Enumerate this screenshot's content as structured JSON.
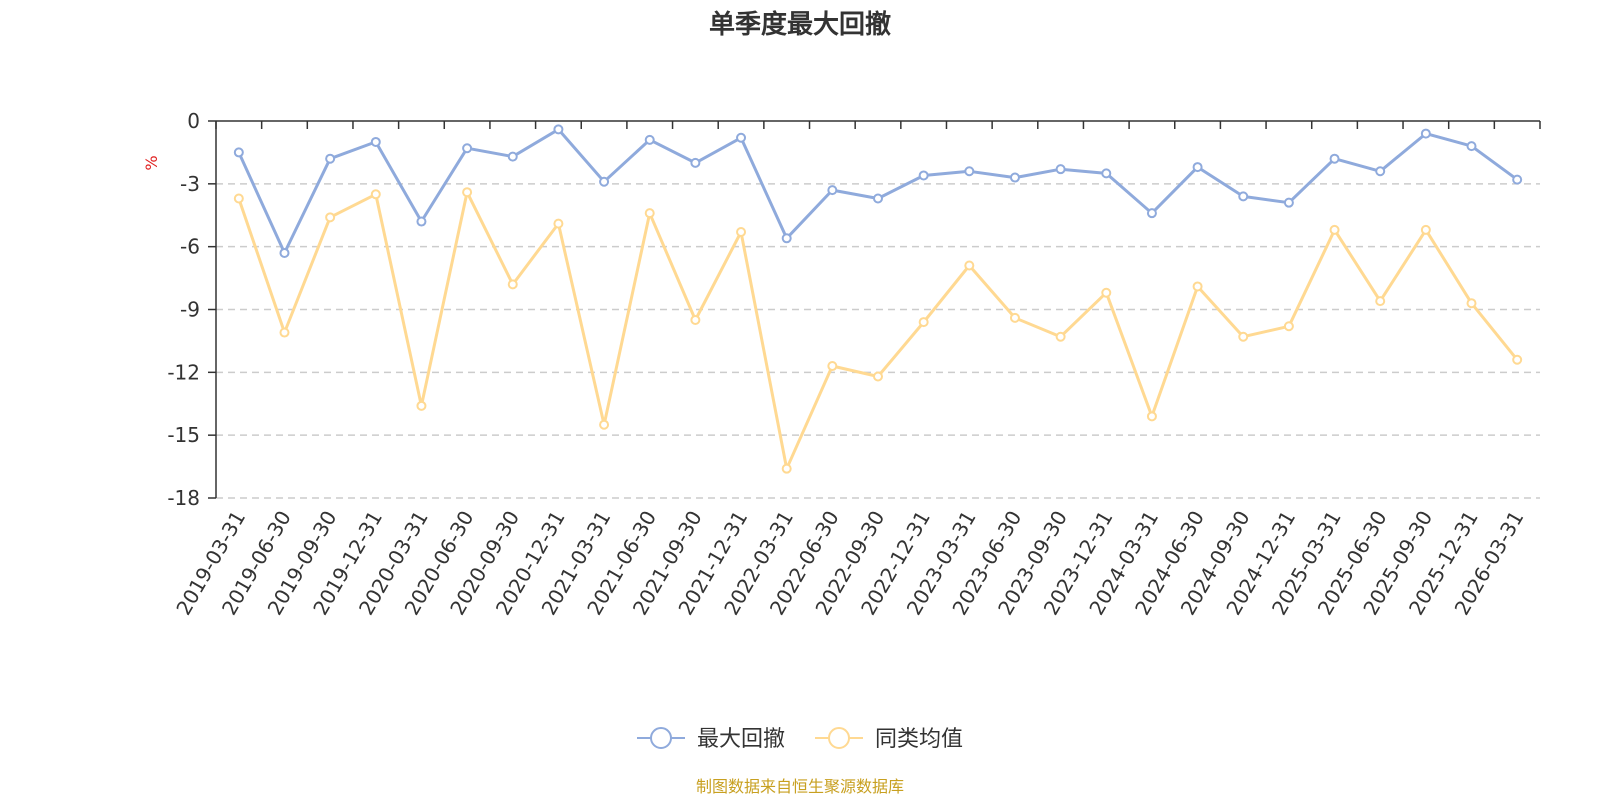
{
  "chart_data": {
    "type": "line",
    "title": "单季度最大回撤",
    "ylabel": "%",
    "ylim": [
      -18,
      0
    ],
    "yticks": [
      0,
      -3,
      -6,
      -9,
      -12,
      -15,
      -18
    ],
    "grid": true,
    "legend_position": "bottom-center",
    "categories": [
      "2019-03-31",
      "2019-06-30",
      "2019-09-30",
      "2019-12-31",
      "2020-03-31",
      "2020-06-30",
      "2020-09-30",
      "2020-12-31",
      "2021-03-31",
      "2021-06-30",
      "2021-09-30",
      "2021-12-31",
      "2022-03-31",
      "2022-06-30",
      "2022-09-30",
      "2022-12-31",
      "2023-03-31",
      "2023-06-30",
      "2023-09-30",
      "2023-12-31",
      "2024-03-31",
      "2024-06-30",
      "2024-09-30",
      "2024-12-31",
      "2025-03-31",
      "2025-06-30",
      "2025-09-30",
      "2025-12-31",
      "2026-03-31"
    ],
    "series": [
      {
        "name": "最大回撤",
        "color": "#8faadc",
        "values": [
          -1.5,
          -6.3,
          -1.8,
          -1.0,
          -4.8,
          -1.3,
          -1.7,
          -0.4,
          -2.9,
          -0.9,
          -2.0,
          -0.8,
          -5.6,
          -3.3,
          -3.7,
          -2.6,
          -2.4,
          -2.7,
          -2.3,
          -2.5,
          -4.4,
          -2.2,
          -3.6,
          -3.9,
          -1.8,
          -2.4,
          -0.6,
          -1.2,
          -2.8
        ]
      },
      {
        "name": "同类均值",
        "color": "#ffd992",
        "values": [
          -3.7,
          -10.1,
          -4.6,
          -3.5,
          -13.6,
          -3.4,
          -7.8,
          -4.9,
          -14.5,
          -4.4,
          -9.5,
          -5.3,
          -16.6,
          -11.7,
          -12.2,
          -9.6,
          -6.9,
          -9.4,
          -10.3,
          -8.2,
          -14.1,
          -7.9,
          -10.3,
          -9.8,
          -5.2,
          -8.6,
          -5.2,
          -8.7,
          -11.4
        ]
      }
    ]
  },
  "source_text": "制图数据来自恒生聚源数据库",
  "colors": {
    "title": "#333333",
    "unit": "#e02020",
    "source": "#c8a020",
    "axis": "#333333",
    "grid": "#cccccc"
  }
}
